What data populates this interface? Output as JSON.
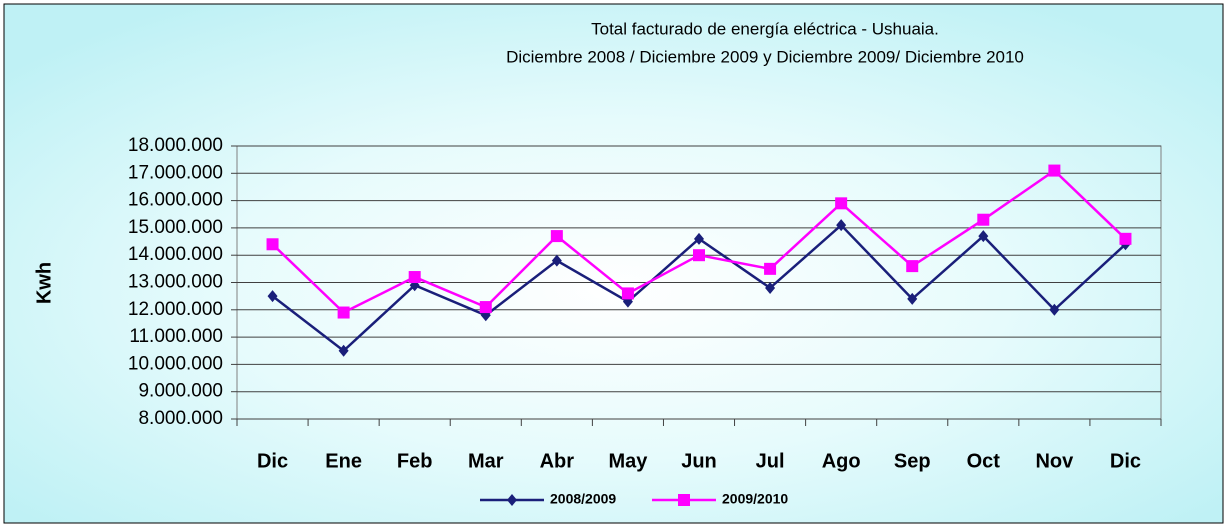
{
  "chart_data": {
    "type": "line",
    "title": "Total facturado de energía eléctrica - Ushuaia.",
    "subtitle": "Diciembre 2008  / Diciembre 2009  y Diciembre 2009/ Diciembre 2010",
    "y_label": "Kwh",
    "categories": [
      "Dic",
      "Ene",
      "Feb",
      "Mar",
      "Abr",
      "May",
      "Jun",
      "Jul",
      "Ago",
      "Sep",
      "Oct",
      "Nov",
      "Dic"
    ],
    "series": [
      {
        "name": "2008/2009",
        "color": "#1a1f7a",
        "marker": "diamond",
        "values": [
          12500000,
          10500000,
          12900000,
          11800000,
          13800000,
          12300000,
          14600000,
          12800000,
          15100000,
          12400000,
          14700000,
          12000000,
          14400000
        ]
      },
      {
        "name": "2009/2010",
        "color": "#ff00ff",
        "marker": "square",
        "values": [
          14400000,
          11900000,
          13200000,
          12100000,
          14700000,
          12600000,
          14000000,
          13500000,
          15900000,
          13600000,
          15300000,
          17100000,
          14600000
        ]
      }
    ],
    "ylim": [
      8000000,
      18000000
    ],
    "yticks": [
      {
        "value": 8000000,
        "label": "8.000.000"
      },
      {
        "value": 9000000,
        "label": "9.000.000"
      },
      {
        "value": 10000000,
        "label": "10.000.000"
      },
      {
        "value": 11000000,
        "label": "11.000.000"
      },
      {
        "value": 12000000,
        "label": "12.000.000"
      },
      {
        "value": 13000000,
        "label": "13.000.000"
      },
      {
        "value": 14000000,
        "label": "14.000.000"
      },
      {
        "value": 15000000,
        "label": "15.000.000"
      },
      {
        "value": 16000000,
        "label": "16.000.000"
      },
      {
        "value": 17000000,
        "label": "17.000.000"
      },
      {
        "value": 18000000,
        "label": "18.000.000"
      }
    ],
    "grid": true,
    "legend": "bottom"
  }
}
